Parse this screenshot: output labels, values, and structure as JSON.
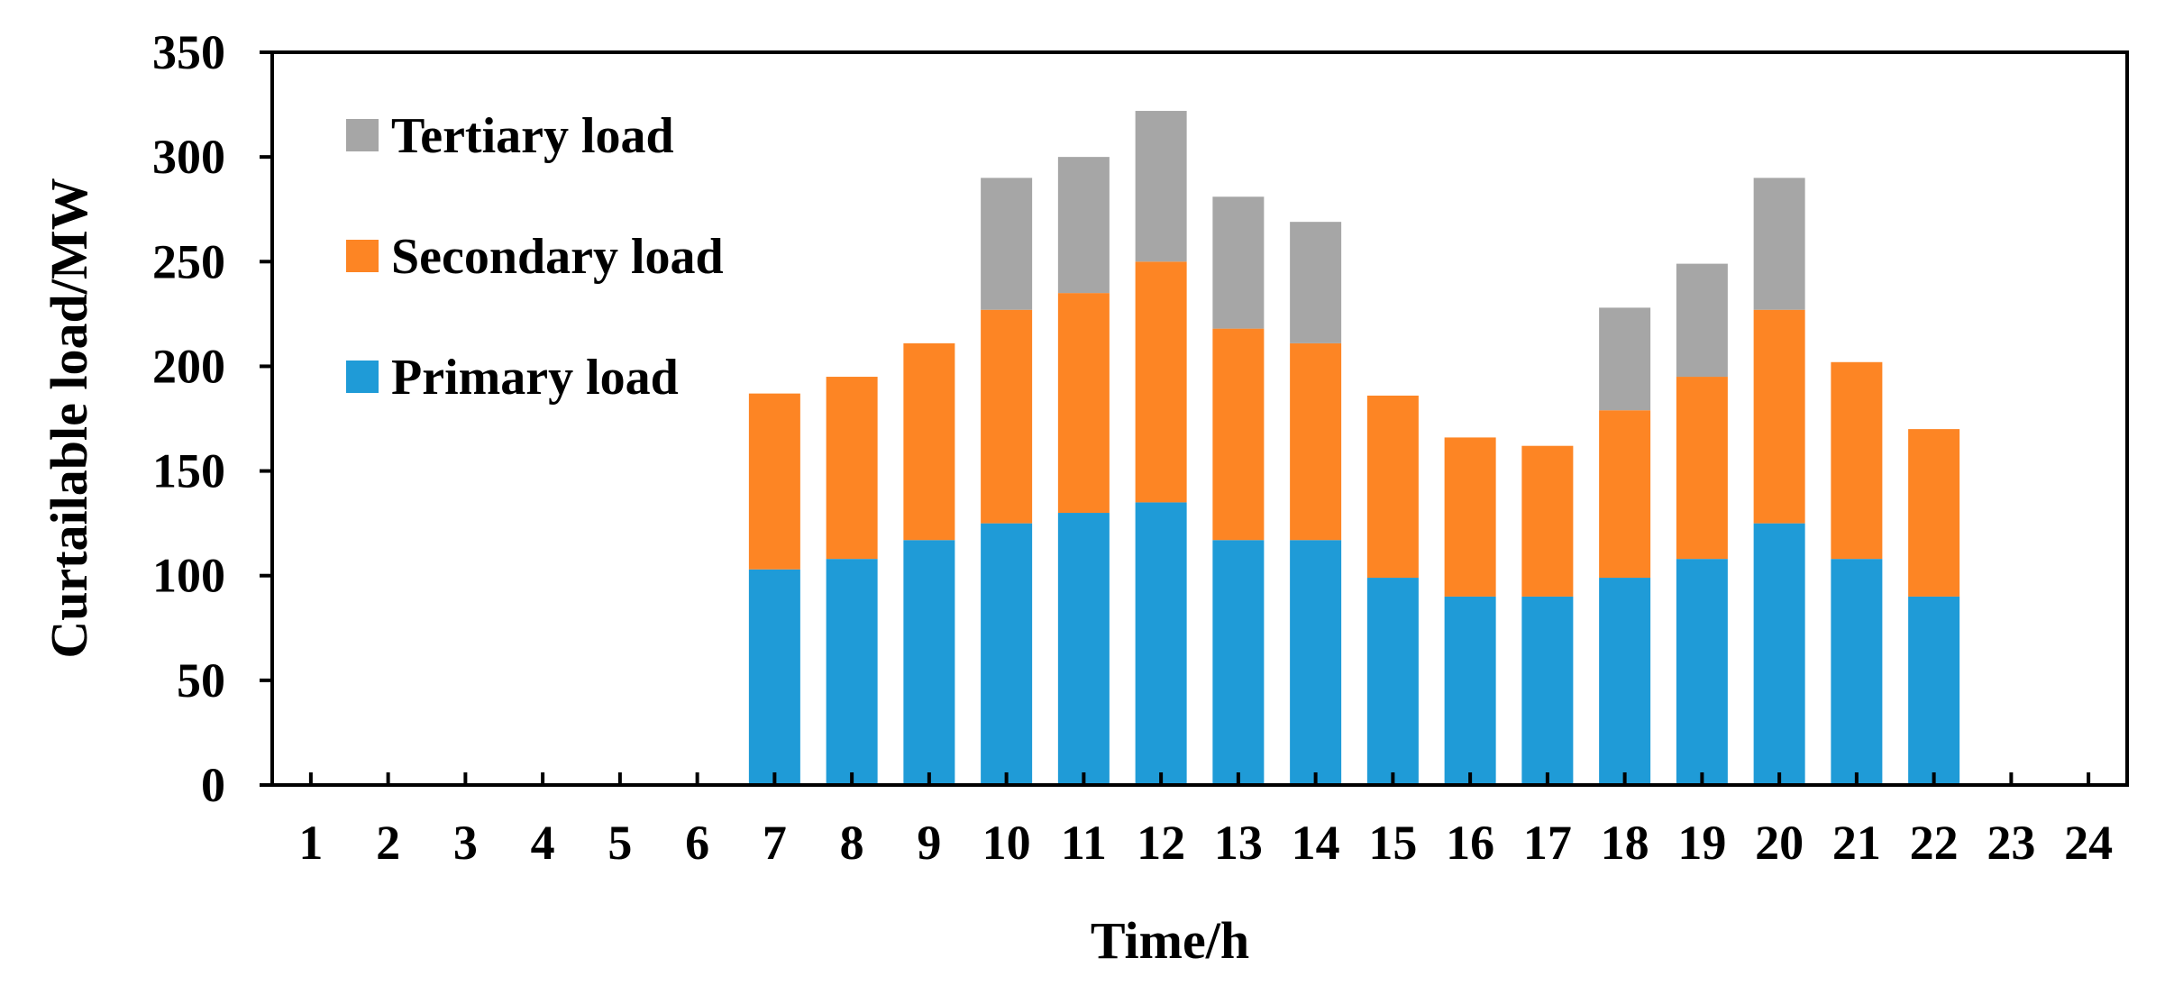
{
  "chart_data": {
    "type": "bar",
    "stacked": true,
    "title": "",
    "xlabel": "Time/h",
    "ylabel": "Curtailable load/MW",
    "ylim": [
      0,
      350
    ],
    "yticks": [
      0,
      50,
      100,
      150,
      200,
      250,
      300,
      350
    ],
    "categories": [
      "1",
      "2",
      "3",
      "4",
      "5",
      "6",
      "7",
      "8",
      "9",
      "10",
      "11",
      "12",
      "13",
      "14",
      "15",
      "16",
      "17",
      "18",
      "19",
      "20",
      "21",
      "22",
      "23",
      "24"
    ],
    "series": [
      {
        "name": "Primary load",
        "color": "#1f9bd7",
        "values": [
          0,
          0,
          0,
          0,
          0,
          0,
          103,
          108,
          117,
          125,
          130,
          135,
          117,
          117,
          99,
          90,
          90,
          99,
          108,
          125,
          108,
          90,
          0,
          0
        ]
      },
      {
        "name": "Secondary load",
        "color": "#fd8524",
        "values": [
          0,
          0,
          0,
          0,
          0,
          0,
          84,
          87,
          94,
          102,
          105,
          115,
          101,
          94,
          87,
          76,
          72,
          80,
          87,
          102,
          94,
          80,
          0,
          0
        ]
      },
      {
        "name": "Tertiary load",
        "color": "#a6a6a6",
        "values": [
          0,
          0,
          0,
          0,
          0,
          0,
          0,
          0,
          0,
          63,
          65,
          72,
          63,
          58,
          0,
          0,
          0,
          49,
          54,
          63,
          0,
          0,
          0,
          0
        ]
      }
    ],
    "legend": {
      "position": "top-left",
      "order": [
        "Tertiary load",
        "Secondary load",
        "Primary load"
      ]
    },
    "grid": false
  }
}
